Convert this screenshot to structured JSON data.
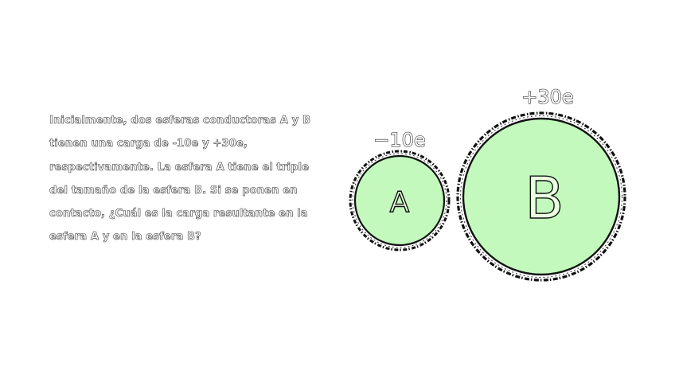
{
  "problem": {
    "text": "Inicialmente, dos esferas conductoras A y B tienen una carga de -10e y +30e, respectivamente. La esfera A tiene el triple del tamaño de la esfera B. Si se ponen en contacto, ¿Cuál es la carga resultante en la esfera A y en la esfera B?"
  },
  "spheres": {
    "a": {
      "letter": "A",
      "charge": "−10e"
    },
    "b": {
      "letter": "B",
      "charge": "+30e"
    }
  },
  "colors": {
    "sphere_fill": "#c3f9bd",
    "outline": "#111111",
    "background": "#ffffff"
  }
}
